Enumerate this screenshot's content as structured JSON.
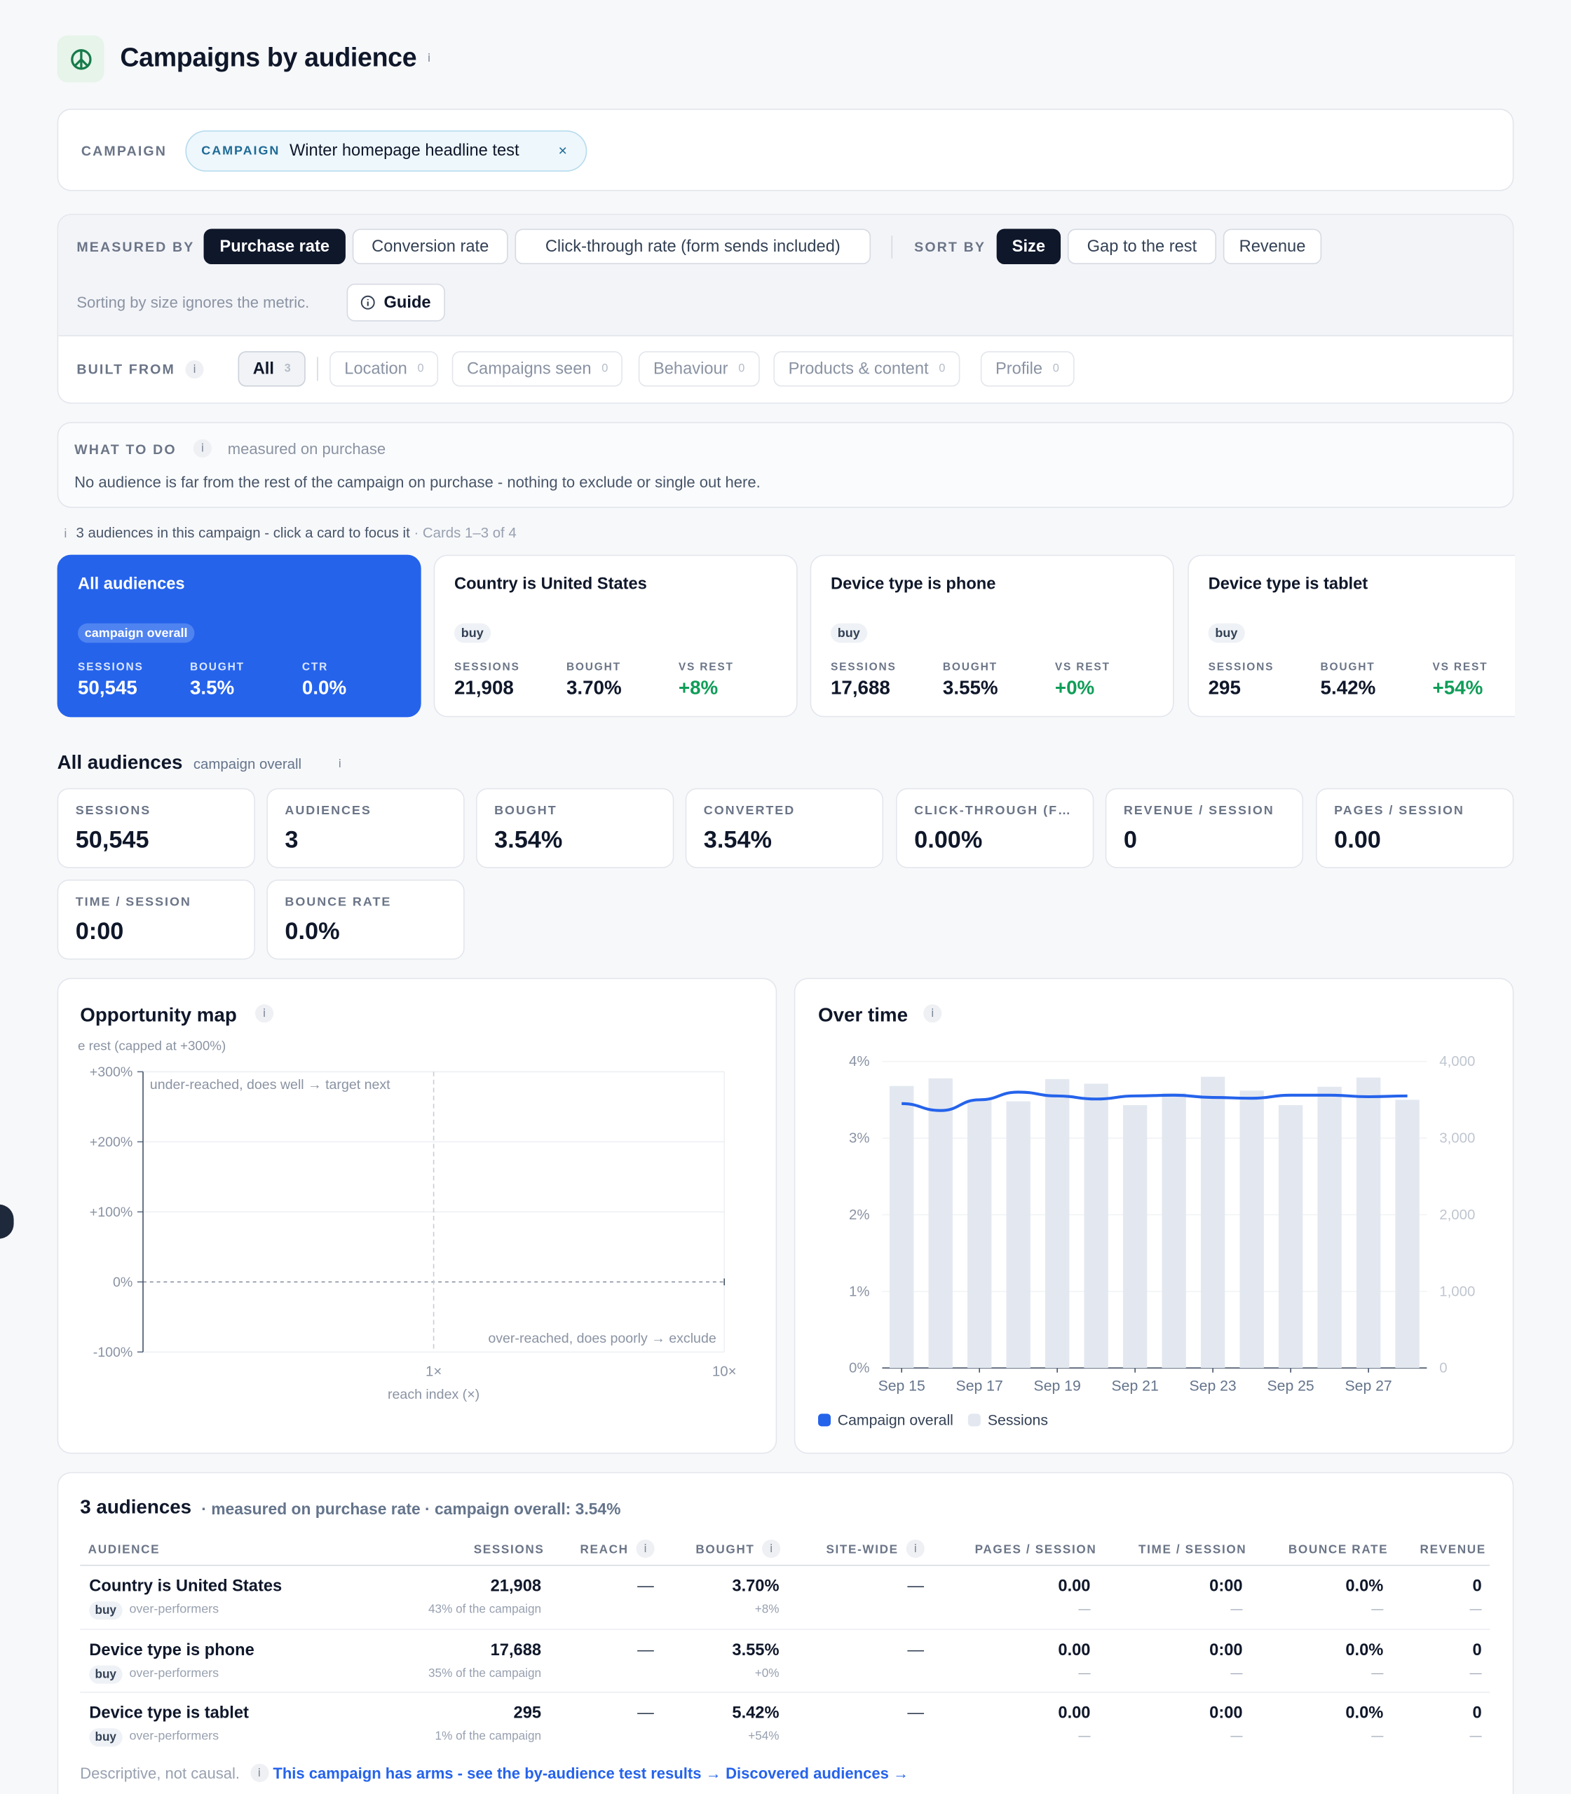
{
  "page": {
    "title": "Campaigns by audience",
    "logo_icon": "peace-icon"
  },
  "campaign_filter": {
    "label": "CAMPAIGN",
    "chip_tag": "CAMPAIGN",
    "chip_value": "Winter homepage headline test",
    "remove_symbol": "×"
  },
  "controls": {
    "measured_by_label": "MEASURED BY",
    "metrics": [
      "Purchase rate",
      "Conversion rate",
      "Click-through rate (form sends included)"
    ],
    "selected_metric": "Purchase rate",
    "sort_by_label": "SORT BY",
    "sort_options": [
      "Size",
      "Gap to the rest",
      "Revenue"
    ],
    "selected_sort": "Size",
    "sort_note": "Sorting by size ignores the metric.",
    "guide_label": "Guide",
    "built_from_label": "BUILT FROM",
    "sources": [
      {
        "label": "All",
        "count": "3"
      },
      {
        "label": "Location",
        "count": "0"
      },
      {
        "label": "Campaigns seen",
        "count": "0"
      },
      {
        "label": "Behaviour",
        "count": "0"
      },
      {
        "label": "Products & content",
        "count": "0"
      },
      {
        "label": "Profile",
        "count": "0"
      }
    ]
  },
  "what_to_do": {
    "label": "WHAT TO DO",
    "measured_on": "measured on purchase",
    "message": "No audience is far from the rest of the campaign on purchase - nothing to exclude or single out here."
  },
  "audience_strip": {
    "hint": "3 audiences in this campaign - click a card to focus it",
    "range": "· Cards 1–3 of 4",
    "cards": [
      {
        "title": "All audiences",
        "tag": "campaign overall",
        "l1": "SESSIONS",
        "v1": "50,545",
        "l2": "BOUGHT",
        "v2": "3.5%",
        "l3": "CTR",
        "v3": "0.0%"
      },
      {
        "title": "Country is United States",
        "tag": "buy",
        "l1": "SESSIONS",
        "v1": "21,908",
        "l2": "BOUGHT",
        "v2": "3.70%",
        "l3": "VS REST",
        "v3": "+8%"
      },
      {
        "title": "Device type is phone",
        "tag": "buy",
        "l1": "SESSIONS",
        "v1": "17,688",
        "l2": "BOUGHT",
        "v2": "3.55%",
        "l3": "VS REST",
        "v3": "+0%"
      },
      {
        "title": "Device type is tablet",
        "tag": "buy",
        "l1": "SESSIONS",
        "v1": "295",
        "l2": "BOUGHT",
        "v2": "5.42%",
        "l3": "VS REST",
        "v3": "+54%"
      }
    ]
  },
  "overview": {
    "title": "All audiences",
    "subtitle": "campaign overall",
    "kpis": [
      {
        "label": "SESSIONS",
        "value": "50,545"
      },
      {
        "label": "AUDIENCES",
        "value": "3"
      },
      {
        "label": "BOUGHT",
        "value": "3.54%"
      },
      {
        "label": "CONVERTED",
        "value": "3.54%"
      },
      {
        "label": "CLICK-THROUGH (F…",
        "value": "0.00%"
      },
      {
        "label": "REVENUE / SESSION",
        "value": "0"
      },
      {
        "label": "PAGES / SESSION",
        "value": "0.00"
      },
      {
        "label": "TIME / SESSION",
        "value": "0:00"
      },
      {
        "label": "BOUNCE RATE",
        "value": "0.0%"
      }
    ]
  },
  "opportunity_map": {
    "title": "Opportunity map",
    "ylabel": "e rest (capped at +300%)",
    "xlabel": "reach index (×)",
    "top_note": "under-reached, does well → target next",
    "bottom_note": "over-reached, does poorly → exclude"
  },
  "over_time": {
    "title": "Over time",
    "legend": [
      "Campaign overall",
      "Sessions"
    ],
    "line_color": "#2563eb",
    "bar_color": "#e3e8f0"
  },
  "chart_data": [
    {
      "type": "scatter",
      "title": "Opportunity map",
      "xlabel": "reach index (×)",
      "ylabel": "e rest (capped at +300%)",
      "x_scale": "log",
      "x_ticks": [
        "1×",
        "10×"
      ],
      "y_ticks": [
        "+300%",
        "+200%",
        "+100%",
        "0%",
        "-100%"
      ],
      "ylim": [
        -100,
        300
      ],
      "points": []
    },
    {
      "type": "bar",
      "title": "Over time",
      "categories": [
        "Sep 15",
        "Sep 16",
        "Sep 17",
        "Sep 18",
        "Sep 19",
        "Sep 20",
        "Sep 21",
        "Sep 22",
        "Sep 23",
        "Sep 24",
        "Sep 25",
        "Sep 26",
        "Sep 27",
        "Sep 28"
      ],
      "x_tick_labels": [
        "Sep 15",
        "Sep 17",
        "Sep 19",
        "Sep 21",
        "Sep 23",
        "Sep 25",
        "Sep 27"
      ],
      "series": [
        {
          "name": "Sessions",
          "axis": "right",
          "type": "bar",
          "values": [
            3680,
            3780,
            3500,
            3480,
            3770,
            3710,
            3430,
            3590,
            3800,
            3620,
            3430,
            3670,
            3790,
            3500
          ]
        },
        {
          "name": "Campaign overall",
          "axis": "left",
          "type": "line",
          "values": [
            3.45,
            3.36,
            3.5,
            3.6,
            3.55,
            3.51,
            3.55,
            3.56,
            3.53,
            3.52,
            3.56,
            3.56,
            3.54,
            3.55
          ]
        }
      ],
      "y_left_ticks": [
        "0%",
        "1%",
        "2%",
        "3%",
        "4%"
      ],
      "y_left_lim": [
        0,
        4
      ],
      "y_right_ticks": [
        "0",
        "1,000",
        "2,000",
        "3,000",
        "4,000"
      ],
      "y_right_lim": [
        0,
        4000
      ],
      "legend": "bottom-left"
    }
  ],
  "table": {
    "title": "3 audiences",
    "subtitle": "· measured on purchase rate · campaign overall: 3.54%",
    "headers": [
      "AUDIENCE",
      "SESSIONS",
      "REACH",
      "BOUGHT",
      "SITE-WIDE",
      "PAGES / SESSION",
      "TIME / SESSION",
      "BOUNCE RATE",
      "REVENUE"
    ],
    "rows": [
      {
        "name": "Country is United States",
        "tag": "buy",
        "tag_note": "over-performers",
        "sessions": "21,908",
        "share": "43% of the campaign",
        "reach": "—",
        "bought": "3.70%",
        "lift": "+8%",
        "sitewide": "—",
        "pages": "0.00",
        "time": "0:00",
        "bounce": "0.0%",
        "revenue": "0",
        "dash": "—"
      },
      {
        "name": "Device type is phone",
        "tag": "buy",
        "tag_note": "over-performers",
        "sessions": "17,688",
        "share": "35% of the campaign",
        "reach": "—",
        "bought": "3.55%",
        "lift": "+0%",
        "sitewide": "—",
        "pages": "0.00",
        "time": "0:00",
        "bounce": "0.0%",
        "revenue": "0",
        "dash": "—"
      },
      {
        "name": "Device type is tablet",
        "tag": "buy",
        "tag_note": "over-performers",
        "sessions": "295",
        "share": "1% of the campaign",
        "reach": "—",
        "bought": "5.42%",
        "lift": "+54%",
        "sitewide": "—",
        "pages": "0.00",
        "time": "0:00",
        "bounce": "0.0%",
        "revenue": "0",
        "dash": "—"
      }
    ],
    "footer_note": "Descriptive, not causal.",
    "footer_link_arms": "This campaign has arms - see the by-audience test results →",
    "footer_link_discovered": "Discovered audiences →"
  },
  "info_glyph": "i"
}
